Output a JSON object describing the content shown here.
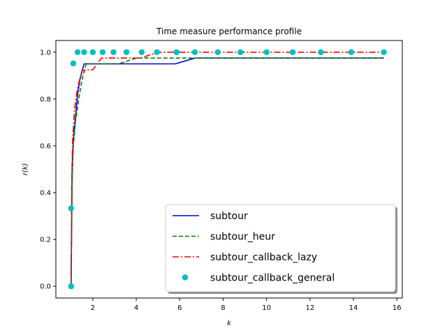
{
  "chart_data": {
    "type": "line",
    "title": "Time measure performance profile",
    "xlabel": "k",
    "ylabel": "r(k)",
    "xlim": [
      0.3,
      16.25
    ],
    "ylim": [
      -0.05,
      1.05
    ],
    "xticks": [
      2,
      4,
      6,
      8,
      10,
      12,
      14,
      16
    ],
    "xtick_labels": [
      "2",
      "4",
      "6",
      "8",
      "10",
      "12",
      "14",
      "16"
    ],
    "yticks": [
      0.0,
      0.2,
      0.4,
      0.6,
      0.8,
      1.0
    ],
    "ytick_labels": [
      "0.0",
      "0.2",
      "0.4",
      "0.6",
      "0.8",
      "1.0"
    ],
    "grid": false,
    "legend_position": "lower-right",
    "series": [
      {
        "name": "subtour",
        "color": "#0000cc",
        "style": "solid",
        "x": [
          1.0,
          1.05,
          1.1,
          1.2,
          1.3,
          1.4,
          1.6,
          2.0,
          3.0,
          4.0,
          5.0,
          5.8,
          6.7,
          10.0,
          15.4
        ],
        "y": [
          0.0,
          0.5,
          0.62,
          0.72,
          0.82,
          0.88,
          0.95,
          0.95,
          0.95,
          0.95,
          0.95,
          0.95,
          0.975,
          0.975,
          0.975
        ]
      },
      {
        "name": "subtour_heur",
        "color": "#008000",
        "style": "dashed",
        "x": [
          1.0,
          1.05,
          1.1,
          1.2,
          1.35,
          1.5,
          1.7,
          2.5,
          3.2,
          4.0,
          6.7,
          10.0,
          15.4
        ],
        "y": [
          0.0,
          0.45,
          0.6,
          0.7,
          0.8,
          0.88,
          0.95,
          0.95,
          0.95,
          0.975,
          0.975,
          0.975,
          0.975
        ]
      },
      {
        "name": "subtour_callback_lazy",
        "color": "#ff0000",
        "style": "dashdot",
        "x": [
          1.0,
          1.03,
          1.07,
          1.15,
          1.3,
          1.5,
          1.7,
          2.0,
          2.4,
          3.5,
          4.2,
          5.0,
          6.7,
          10.0,
          15.4
        ],
        "y": [
          0.0,
          0.45,
          0.62,
          0.75,
          0.85,
          0.92,
          0.925,
          0.925,
          0.975,
          0.975,
          0.975,
          1.0,
          1.0,
          1.0,
          1.0
        ]
      },
      {
        "name": "subtour_callback_general",
        "color": "#00bfbf",
        "style": "markers",
        "x": [
          1.0,
          1.0,
          1.1,
          1.3,
          1.6,
          2.0,
          2.45,
          2.95,
          3.55,
          4.25,
          4.95,
          5.85,
          6.7,
          7.75,
          8.8,
          10.0,
          11.2,
          12.5,
          13.9,
          15.4
        ],
        "y": [
          0.0,
          0.333,
          0.952,
          1.0,
          1.0,
          1.0,
          1.0,
          1.0,
          1.0,
          1.0,
          1.0,
          1.0,
          1.0,
          1.0,
          1.0,
          1.0,
          1.0,
          1.0,
          1.0,
          1.0
        ]
      }
    ]
  }
}
